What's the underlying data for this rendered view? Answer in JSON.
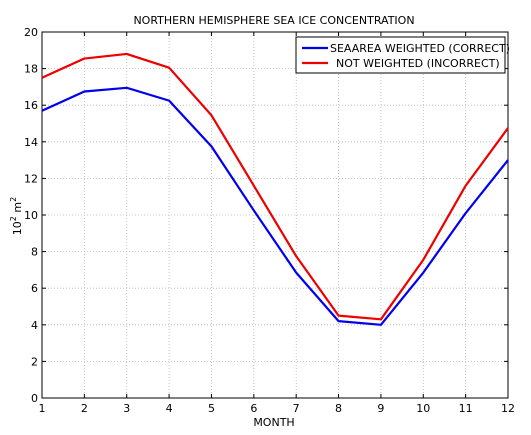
{
  "chart_data": {
    "type": "line",
    "title": "NORTHERN HEMISPHERE SEA ICE CONCENTRATION",
    "xlabel": "MONTH",
    "ylabel": "10",
    "ylabel_sup1": "2",
    "ylabel_mid": " m",
    "ylabel_sup2": "2",
    "x": [
      1,
      2,
      3,
      4,
      5,
      6,
      7,
      8,
      9,
      10,
      11,
      12
    ],
    "xlim": [
      1,
      12
    ],
    "ylim": [
      0,
      20
    ],
    "xticks": [
      "1",
      "2",
      "3",
      "4",
      "5",
      "6",
      "7",
      "8",
      "9",
      "10",
      "11",
      "12"
    ],
    "yticks": [
      "0",
      "2",
      "4",
      "6",
      "8",
      "10",
      "12",
      "14",
      "16",
      "18",
      "20"
    ],
    "grid": true,
    "legend_position": "top-right",
    "series": [
      {
        "name": "SEAAREA WEIGHTED (CORRECT)",
        "color": "#0000ee",
        "values": [
          15.7,
          16.75,
          16.95,
          16.25,
          13.75,
          10.25,
          6.85,
          4.2,
          4.0,
          6.85,
          10.1,
          13.0
        ]
      },
      {
        "name": "NOT WEIGHTED (INCORRECT)",
        "color": "#ee0000",
        "values": [
          17.5,
          18.55,
          18.8,
          18.05,
          15.45,
          11.6,
          7.75,
          4.5,
          4.3,
          7.55,
          11.6,
          14.75
        ]
      }
    ]
  }
}
